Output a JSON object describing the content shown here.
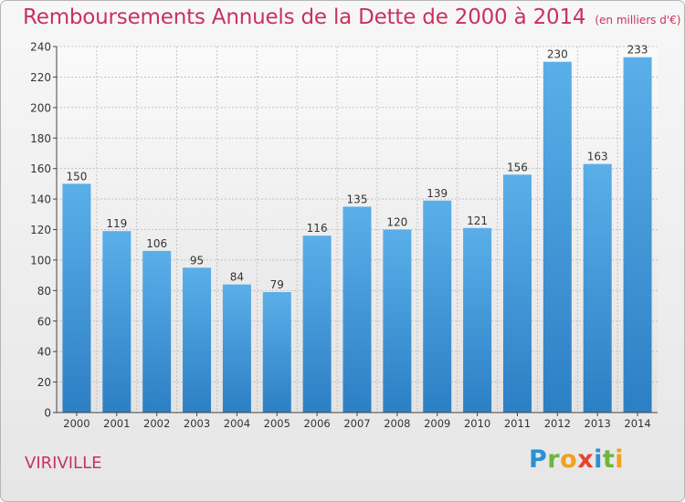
{
  "chart_data": {
    "type": "bar",
    "title": "Remboursements Annuels de la Dette de 2000 à 2014",
    "unit_note": "(en milliers d'€)",
    "categories": [
      "2000",
      "2001",
      "2002",
      "2003",
      "2004",
      "2005",
      "2006",
      "2007",
      "2008",
      "2009",
      "2010",
      "2011",
      "2012",
      "2013",
      "2014"
    ],
    "values": [
      150,
      119,
      106,
      95,
      84,
      79,
      116,
      135,
      120,
      139,
      121,
      156,
      230,
      163,
      233
    ],
    "ylim": [
      0,
      240
    ],
    "yticks": [
      0,
      20,
      40,
      60,
      80,
      100,
      120,
      140,
      160,
      180,
      200,
      220,
      240
    ],
    "xlabel": "",
    "ylabel": "",
    "grid": true,
    "colors": {
      "bar_top": "#5aafe9",
      "bar_bottom": "#2d7fc4",
      "title": "#c8325d",
      "grid": "#bbbbbb"
    }
  },
  "footer": {
    "commune": "VIRIVILLE",
    "brand_letters": [
      {
        "ch": "P",
        "color": "#2a8fd6"
      },
      {
        "ch": "r",
        "color": "#6fb43f"
      },
      {
        "ch": "o",
        "color": "#f0a11e"
      },
      {
        "ch": "x",
        "color": "#e8432e"
      },
      {
        "ch": "i",
        "color": "#2a8fd6"
      },
      {
        "ch": "t",
        "color": "#6fb43f"
      },
      {
        "ch": "i",
        "color": "#f0a11e"
      }
    ]
  }
}
